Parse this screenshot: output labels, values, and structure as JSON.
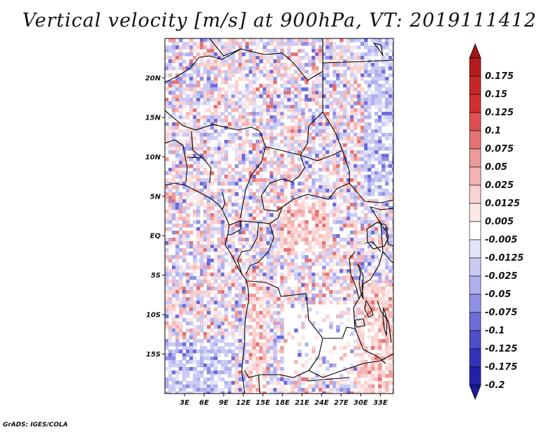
{
  "title": "Vertical velocity [m/s] at 900hPa, VT: 2019111412",
  "credit": "GrADS: IGES/COLA",
  "map": {
    "lon_range": [
      0,
      35
    ],
    "lat_range": [
      -20,
      25
    ],
    "lat_ticks": [
      {
        "value": 20,
        "label": "20N"
      },
      {
        "value": 15,
        "label": "15N"
      },
      {
        "value": 10,
        "label": "10N"
      },
      {
        "value": 5,
        "label": "5N"
      },
      {
        "value": 0,
        "label": "EQ"
      },
      {
        "value": -5,
        "label": "5S"
      },
      {
        "value": -10,
        "label": "10S"
      },
      {
        "value": -15,
        "label": "15S"
      }
    ],
    "lon_ticks": [
      {
        "value": 3,
        "label": "3E"
      },
      {
        "value": 6,
        "label": "6E"
      },
      {
        "value": 9,
        "label": "9E"
      },
      {
        "value": 12,
        "label": "12E"
      },
      {
        "value": 15,
        "label": "15E"
      },
      {
        "value": 18,
        "label": "18E"
      },
      {
        "value": 21,
        "label": "21E"
      },
      {
        "value": 24,
        "label": "24E"
      },
      {
        "value": 27,
        "label": "27E"
      },
      {
        "value": 30,
        "label": "30E"
      },
      {
        "value": 33,
        "label": "33E"
      }
    ]
  },
  "colorbar": {
    "levels": [
      {
        "label": "0.175",
        "color": "#b71c1c"
      },
      {
        "label": "0.15",
        "color": "#c62828"
      },
      {
        "label": "0.125",
        "color": "#d32f2f"
      },
      {
        "label": "0.1",
        "color": "#e05050"
      },
      {
        "label": "0.075",
        "color": "#e57373"
      },
      {
        "label": "0.05",
        "color": "#ef9a9a"
      },
      {
        "label": "0.025",
        "color": "#f5b5b5"
      },
      {
        "label": "0.0125",
        "color": "#fad2d2"
      },
      {
        "label": "0.005",
        "color": "#fde8e8"
      },
      {
        "label": "-0.005",
        "color": "#ffffff"
      },
      {
        "label": "-0.0125",
        "color": "#e4e4fb"
      },
      {
        "label": "-0.025",
        "color": "#cacaf5"
      },
      {
        "label": "-0.05",
        "color": "#b0b0ef"
      },
      {
        "label": "-0.075",
        "color": "#9090e6"
      },
      {
        "label": "-0.1",
        "color": "#6d6dd9"
      },
      {
        "label": "-0.125",
        "color": "#4f4fcc"
      },
      {
        "label": "-0.175",
        "color": "#3333bb"
      },
      {
        "label": "-0.2",
        "color": "#2222a8"
      }
    ],
    "top_tip_color": "#a31515",
    "bottom_tip_color": "#1a1a9a"
  }
}
